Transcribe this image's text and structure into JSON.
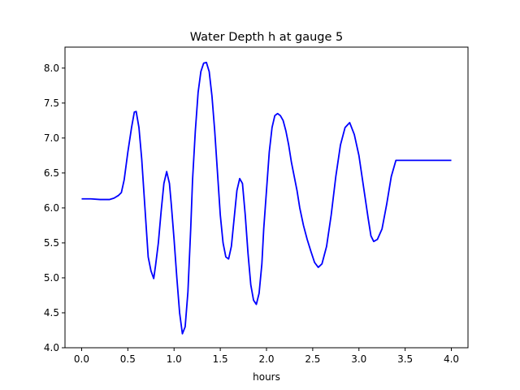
{
  "chart_data": {
    "type": "line",
    "title": "Water Depth h at gauge 5",
    "xlabel": "hours",
    "ylabel": "",
    "xlim": [
      -0.18,
      4.18
    ],
    "ylim": [
      4.0,
      8.3
    ],
    "xticks": [
      0.0,
      0.5,
      1.0,
      1.5,
      2.0,
      2.5,
      3.0,
      3.5,
      4.0
    ],
    "xtick_labels": [
      "0.0",
      "0.5",
      "1.0",
      "1.5",
      "2.0",
      "2.5",
      "3.0",
      "3.5",
      "4.0"
    ],
    "yticks": [
      4.0,
      4.5,
      5.0,
      5.5,
      6.0,
      6.5,
      7.0,
      7.5,
      8.0
    ],
    "ytick_labels": [
      "4.0",
      "4.5",
      "5.0",
      "5.5",
      "6.0",
      "6.5",
      "7.0",
      "7.5",
      "8.0"
    ],
    "grid": false,
    "series": [
      {
        "color": "#0000ff",
        "x": [
          0.0,
          0.1,
          0.2,
          0.3,
          0.35,
          0.4,
          0.43,
          0.46,
          0.5,
          0.54,
          0.57,
          0.59,
          0.62,
          0.65,
          0.68,
          0.72,
          0.75,
          0.78,
          0.8,
          0.83,
          0.86,
          0.89,
          0.92,
          0.95,
          0.97,
          1.0,
          1.03,
          1.06,
          1.09,
          1.12,
          1.15,
          1.18,
          1.2,
          1.23,
          1.26,
          1.29,
          1.32,
          1.35,
          1.38,
          1.41,
          1.44,
          1.47,
          1.5,
          1.53,
          1.56,
          1.59,
          1.62,
          1.65,
          1.68,
          1.71,
          1.74,
          1.77,
          1.8,
          1.83,
          1.86,
          1.89,
          1.92,
          1.95,
          1.97,
          2.0,
          2.03,
          2.06,
          2.09,
          2.12,
          2.15,
          2.18,
          2.21,
          2.24,
          2.27,
          2.3,
          2.33,
          2.36,
          2.4,
          2.44,
          2.48,
          2.52,
          2.56,
          2.6,
          2.65,
          2.7,
          2.75,
          2.8,
          2.85,
          2.9,
          2.95,
          3.0,
          3.05,
          3.1,
          3.13,
          3.16,
          3.2,
          3.25,
          3.3,
          3.35,
          3.4,
          3.44,
          3.48,
          3.51,
          3.55,
          3.6,
          3.65,
          3.7,
          3.74,
          3.77,
          3.8,
          3.84,
          3.88,
          3.92,
          3.96,
          4.0
        ],
        "y": [
          6.13,
          6.13,
          6.12,
          6.12,
          6.14,
          6.18,
          6.22,
          6.4,
          6.8,
          7.15,
          7.37,
          7.38,
          7.15,
          6.7,
          6.1,
          5.3,
          5.1,
          4.99,
          5.18,
          5.5,
          5.95,
          6.35,
          6.52,
          6.35,
          6.05,
          5.55,
          5.0,
          4.5,
          4.2,
          4.3,
          4.8,
          5.7,
          6.4,
          7.1,
          7.65,
          7.95,
          8.07,
          8.08,
          7.95,
          7.6,
          7.1,
          6.5,
          5.9,
          5.5,
          5.3,
          5.27,
          5.45,
          5.85,
          6.25,
          6.42,
          6.35,
          5.9,
          5.35,
          4.9,
          4.68,
          4.62,
          4.78,
          5.2,
          5.7,
          6.25,
          6.8,
          7.15,
          7.32,
          7.35,
          7.32,
          7.25,
          7.1,
          6.9,
          6.65,
          6.45,
          6.25,
          6.0,
          5.75,
          5.55,
          5.38,
          5.22,
          5.15,
          5.2,
          5.45,
          5.9,
          6.45,
          6.9,
          7.15,
          7.22,
          7.05,
          6.75,
          6.3,
          5.85,
          5.6,
          5.52,
          5.55,
          5.7,
          6.05,
          6.45,
          6.68,
          6.68,
          6.68,
          6.68,
          6.68,
          6.68,
          6.68,
          6.68,
          6.68,
          6.68,
          6.68,
          6.68,
          6.68,
          6.68,
          6.68,
          6.68
        ]
      }
    ]
  }
}
